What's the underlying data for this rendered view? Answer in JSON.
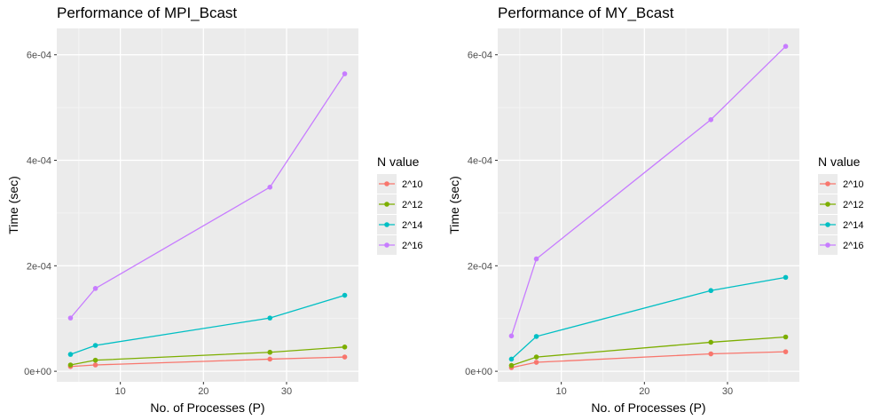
{
  "chart_data": [
    {
      "type": "line",
      "title": "Performance of MPI_Bcast",
      "xlabel": "No. of Processes (P)",
      "ylabel": "Time (sec)",
      "x": [
        4,
        7,
        28,
        37
      ],
      "xlim": [
        2.35,
        38.65
      ],
      "ylim": [
        -2e-05,
        0.00065
      ],
      "x_ticks": [
        10,
        20,
        30
      ],
      "x_tick_labels": [
        "10",
        "20",
        "30"
      ],
      "y_ticks": [
        0,
        0.0002,
        0.0004,
        0.0006
      ],
      "y_tick_labels": [
        "0e+00",
        "2e-04",
        "4e-04",
        "6e-04"
      ],
      "grid": true,
      "legend": {
        "title": "N value",
        "placement": "right"
      },
      "series": [
        {
          "name": "2^10",
          "color": "#F8766D",
          "values": [
            9e-06,
            1.2e-05,
            2.3e-05,
            2.7e-05
          ]
        },
        {
          "name": "2^12",
          "color": "#7CAE00",
          "values": [
            1.2e-05,
            2.1e-05,
            3.6e-05,
            4.6e-05
          ]
        },
        {
          "name": "2^14",
          "color": "#00BFC4",
          "values": [
            3.2e-05,
            4.9e-05,
            0.000101,
            0.000144
          ]
        },
        {
          "name": "2^16",
          "color": "#C77CFF",
          "values": [
            0.000101,
            0.000157,
            0.000349,
            0.000564
          ]
        }
      ]
    },
    {
      "type": "line",
      "title": "Performance of MY_Bcast",
      "xlabel": "No. of Processes (P)",
      "ylabel": "Time (sec)",
      "x": [
        4,
        7,
        28,
        37
      ],
      "xlim": [
        2.35,
        38.65
      ],
      "ylim": [
        -2e-05,
        0.00065
      ],
      "x_ticks": [
        10,
        20,
        30
      ],
      "x_tick_labels": [
        "10",
        "20",
        "30"
      ],
      "y_ticks": [
        0,
        0.0002,
        0.0004,
        0.0006
      ],
      "y_tick_labels": [
        "0e+00",
        "2e-04",
        "4e-04",
        "6e-04"
      ],
      "grid": true,
      "legend": {
        "title": "N value",
        "placement": "right"
      },
      "series": [
        {
          "name": "2^10",
          "color": "#F8766D",
          "values": [
            7e-06,
            1.7e-05,
            3.3e-05,
            3.7e-05
          ]
        },
        {
          "name": "2^12",
          "color": "#7CAE00",
          "values": [
            1.1e-05,
            2.7e-05,
            5.5e-05,
            6.5e-05
          ]
        },
        {
          "name": "2^14",
          "color": "#00BFC4",
          "values": [
            2.3e-05,
            6.6e-05,
            0.000153,
            0.000178
          ]
        },
        {
          "name": "2^16",
          "color": "#C77CFF",
          "values": [
            6.7e-05,
            0.000213,
            0.000477,
            0.000616
          ]
        }
      ]
    }
  ]
}
